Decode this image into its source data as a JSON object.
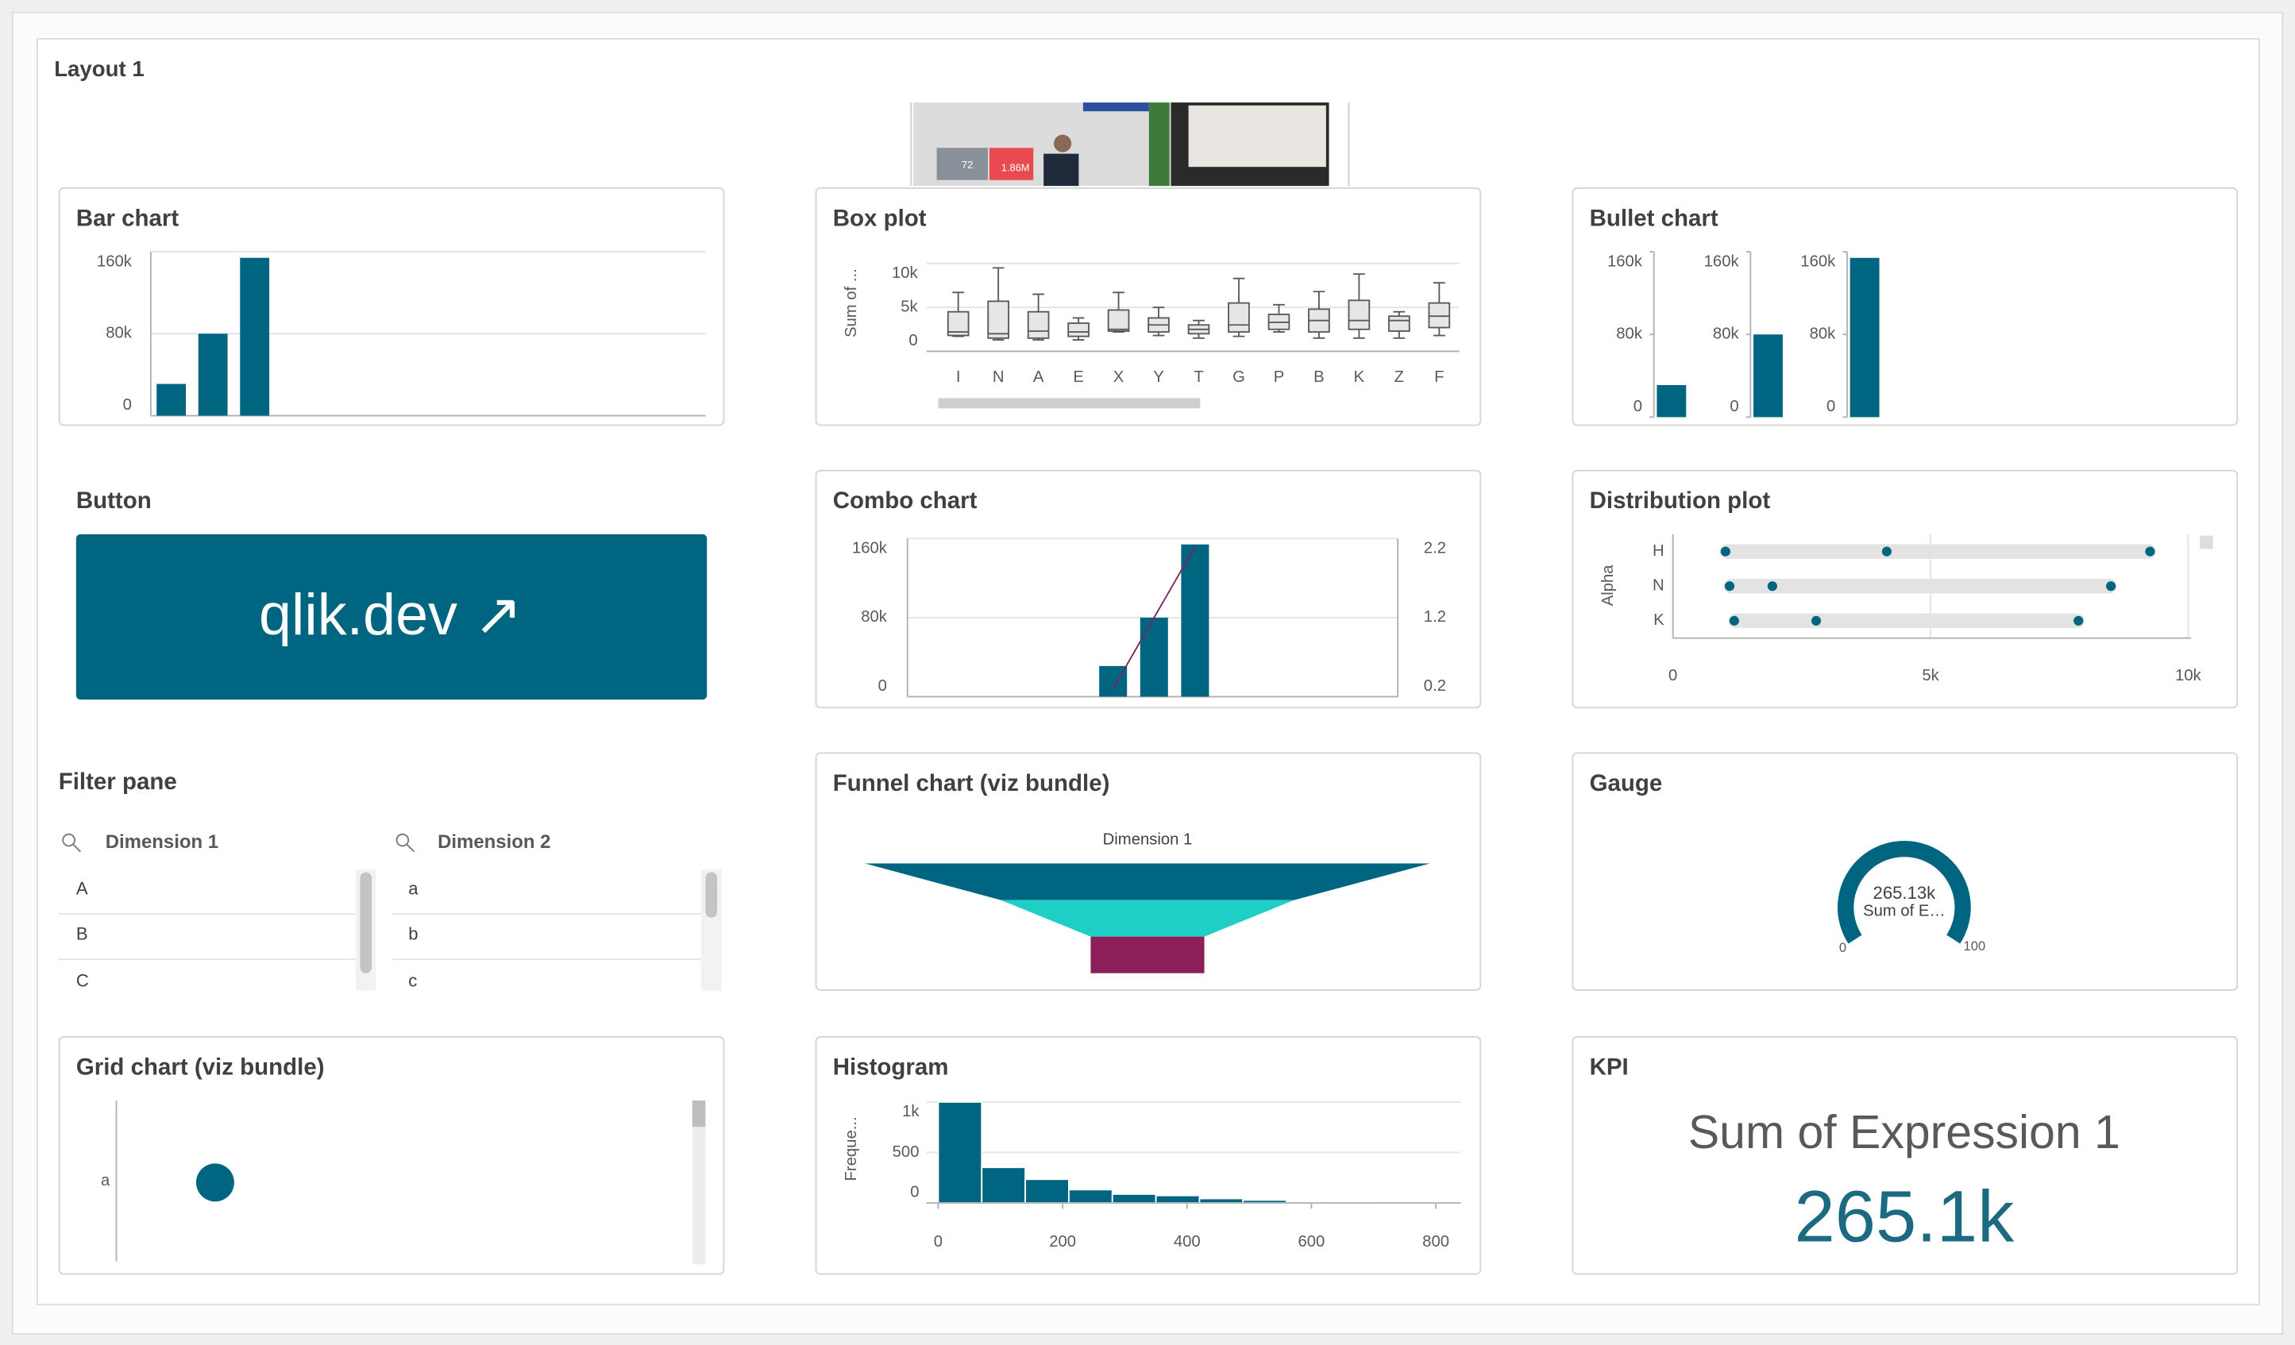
{
  "title": "Layout 1",
  "photo_labels": [
    "72",
    "1.86M"
  ],
  "panels": {
    "bar_chart": {
      "type": "bar",
      "title": "Bar chart",
      "values": [
        31000,
        80000,
        154100
      ],
      "color": "#006580",
      "ylim": [
        0,
        160000
      ],
      "yticks": [
        0,
        {
          "value": 80000,
          "label": "80k"
        },
        {
          "value": 160000,
          "label": "160k"
        }
      ],
      "grid": true
    },
    "box_plot": {
      "type": "boxplot",
      "title": "Box plot",
      "y_label": "Sum of ...",
      "categories": [
        "I",
        "N",
        "A",
        "E",
        "X",
        "Y",
        "T",
        "G",
        "P",
        "B",
        "K",
        "Z",
        "F"
      ],
      "min": [
        1700,
        1300,
        1300,
        1300,
        2200,
        1800,
        1500,
        1700,
        2200,
        1500,
        1500,
        1500,
        1800
      ],
      "q1": [
        1800,
        1500,
        1500,
        1700,
        2300,
        2200,
        2000,
        2200,
        2500,
        2200,
        2500,
        2300,
        2700
      ],
      "median": [
        2200,
        2000,
        2300,
        2200,
        2500,
        3000,
        2500,
        3000,
        3300,
        3500,
        3500,
        3500,
        4000
      ],
      "q3": [
        4500,
        5700,
        4500,
        3200,
        4700,
        3800,
        3000,
        5500,
        4200,
        4800,
        5800,
        4000,
        5500
      ],
      "max": [
        6700,
        9500,
        6500,
        3800,
        6700,
        5000,
        3500,
        8300,
        5300,
        6800,
        8800,
        4500,
        7800
      ],
      "color": "#e6e6e6",
      "ylim": [
        0,
        10000
      ],
      "yticks": [
        0,
        {
          "value": 5000,
          "label": "5k"
        },
        {
          "value": 10000,
          "label": "10k"
        }
      ],
      "grid": true
    },
    "bullet_chart": {
      "type": "bullet",
      "title": "Bullet chart",
      "values": [
        31000,
        80000,
        154100
      ],
      "color": "#006580",
      "ylim": [
        0,
        160000
      ],
      "yticks": [
        0,
        {
          "value": 80000,
          "label": "80k"
        },
        {
          "value": 160000,
          "label": "160k"
        }
      ]
    },
    "button": {
      "title": "Button",
      "label": "qlik.dev ↗",
      "color": "#006580"
    },
    "combo_chart": {
      "type": "combo",
      "title": "Combo chart",
      "series": [
        {
          "type": "bar",
          "color": "#006580",
          "values": [
            31000,
            80000,
            154100
          ]
        },
        {
          "type": "line",
          "color": "#7a2460",
          "axis": "y2",
          "values": [
            0.3,
            1.2,
            2.1
          ]
        }
      ],
      "ylim": [
        0,
        160000
      ],
      "yticks": [
        0,
        {
          "value": 80000,
          "label": "80k"
        },
        {
          "value": 160000,
          "label": "160k"
        }
      ],
      "y2lim": [
        0.2,
        2.2
      ],
      "y2ticks": [
        0.2,
        1.2,
        2.2
      ],
      "grid": true
    },
    "distribution_plot": {
      "type": "distribution",
      "title": "Distribution plot",
      "y_label": "Alpha",
      "categories": [
        "H",
        "N",
        "K"
      ],
      "values": [
        [
          1020,
          4150,
          9260
        ],
        [
          1100,
          1930,
          8500
        ],
        [
          1190,
          2780,
          7870
        ]
      ],
      "color": "#006580",
      "xlim": [
        0,
        10000
      ],
      "xticks": [
        0,
        {
          "value": 5000,
          "label": "5k"
        },
        {
          "value": 10000,
          "label": "10k"
        }
      ],
      "grid": true
    },
    "filter_pane": {
      "title": "Filter pane",
      "lists": [
        {
          "title": "Dimension 1",
          "items": [
            "A",
            "B",
            "C"
          ]
        },
        {
          "title": "Dimension 2",
          "items": [
            "a",
            "b",
            "c"
          ]
        }
      ]
    },
    "funnel_chart": {
      "type": "funnel",
      "title": "Funnel chart (viz bundle)",
      "dimension_label": "Dimension 1",
      "values": [
        154100,
        80000,
        31000
      ],
      "colors": [
        "#006580",
        "#1fcfc6",
        "#8c1f5a"
      ]
    },
    "gauge": {
      "type": "gauge",
      "title": "Gauge",
      "value": 265130,
      "value_label": "265.13k",
      "label": "Sum of E…",
      "range": [
        0,
        100
      ],
      "color": "#006580"
    },
    "grid_chart": {
      "title": "Grid chart (viz bundle)",
      "rows": [
        "a"
      ],
      "color": "#006580"
    },
    "histogram": {
      "type": "histogram",
      "title": "Histogram",
      "y_label": "Freque...",
      "bins": [
        0,
        70,
        140,
        210,
        280,
        350,
        420,
        490,
        560,
        630,
        700
      ],
      "values": [
        1000,
        353,
        235,
        132,
        88,
        74,
        44,
        29,
        15,
        10
      ],
      "color": "#006580",
      "xlim": [
        0,
        840
      ],
      "xticks": [
        0,
        200,
        400,
        600,
        800
      ],
      "ylim": [
        0,
        1000
      ],
      "yticks": [
        0,
        500,
        {
          "value": 1000,
          "label": "1k"
        }
      ],
      "grid": true
    },
    "kpi": {
      "type": "kpi",
      "title": "KPI",
      "label": "Sum of Expression 1",
      "value": 265100,
      "value_label": "265.1k",
      "color": "#1b6a82"
    }
  }
}
